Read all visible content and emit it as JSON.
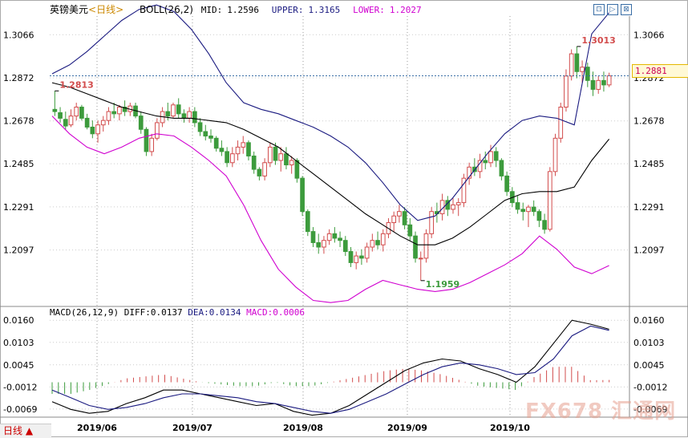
{
  "header": {
    "symbol": "英镑美元",
    "period": "<日线>",
    "boll_label": "BOLL(26,2)",
    "mid_label": "MID:",
    "mid": "1.2596",
    "upper_label": "UPPER:",
    "upper": "1.3165",
    "lower_label": "LOWER:",
    "lower": "1.2027"
  },
  "macd_header": {
    "label": "MACD(26,12,9)",
    "diff_label": "DIFF:",
    "diff": "0.0137",
    "dea_label": "DEA:",
    "dea": "0.0134",
    "macd_label": "MACD:",
    "macd": "0.0006"
  },
  "current_price": "1.2881",
  "period_button": "日线",
  "watermark": "FX678 汇通网",
  "toolbar": {
    "tool1": "⊡",
    "tool2": "▷",
    "tool3": "⊠"
  },
  "colors": {
    "up": "#d24c4c",
    "down": "#3c9b3c",
    "upper": "#1a1a80",
    "mid": "#000000",
    "lower": "#d000d0",
    "diff": "#000000",
    "dea": "#1a1a80",
    "grid": "#999999"
  },
  "chart_data": [
    {
      "type": "candlestick",
      "title": "英镑美元",
      "xlabel": "",
      "ylabel": "",
      "ylim": [
        1.185,
        1.315
      ],
      "yticks": [
        1.3066,
        1.2872,
        1.2678,
        1.2485,
        1.2291,
        1.2097
      ],
      "xticks": [
        "2019/06",
        "2019/07",
        "2019/08",
        "2019/09",
        "2019/10"
      ],
      "annotations": [
        {
          "text": "1.2813",
          "value": 1.2813,
          "kind": "high"
        },
        {
          "text": "1.1959",
          "value": 1.1959,
          "kind": "low"
        },
        {
          "text": "1.3013",
          "value": 1.3013,
          "kind": "high"
        }
      ],
      "current_price": 1.2881,
      "candles": [
        {
          "o": 1.273,
          "h": 1.2813,
          "l": 1.27,
          "c": 1.272
        },
        {
          "o": 1.2715,
          "h": 1.274,
          "l": 1.267,
          "c": 1.269
        },
        {
          "o": 1.2685,
          "h": 1.272,
          "l": 1.264,
          "c": 1.2655
        },
        {
          "o": 1.266,
          "h": 1.273,
          "l": 1.265,
          "c": 1.27
        },
        {
          "o": 1.27,
          "h": 1.276,
          "l": 1.268,
          "c": 1.274
        },
        {
          "o": 1.274,
          "h": 1.275,
          "l": 1.268,
          "c": 1.269
        },
        {
          "o": 1.269,
          "h": 1.271,
          "l": 1.264,
          "c": 1.265
        },
        {
          "o": 1.265,
          "h": 1.268,
          "l": 1.26,
          "c": 1.262
        },
        {
          "o": 1.262,
          "h": 1.268,
          "l": 1.258,
          "c": 1.266
        },
        {
          "o": 1.266,
          "h": 1.27,
          "l": 1.263,
          "c": 1.268
        },
        {
          "o": 1.268,
          "h": 1.274,
          "l": 1.266,
          "c": 1.272
        },
        {
          "o": 1.272,
          "h": 1.276,
          "l": 1.269,
          "c": 1.271
        },
        {
          "o": 1.271,
          "h": 1.275,
          "l": 1.268,
          "c": 1.274
        },
        {
          "o": 1.274,
          "h": 1.277,
          "l": 1.27,
          "c": 1.272
        },
        {
          "o": 1.272,
          "h": 1.276,
          "l": 1.27,
          "c": 1.2745
        },
        {
          "o": 1.2745,
          "h": 1.276,
          "l": 1.269,
          "c": 1.27
        },
        {
          "o": 1.27,
          "h": 1.272,
          "l": 1.262,
          "c": 1.264
        },
        {
          "o": 1.264,
          "h": 1.265,
          "l": 1.252,
          "c": 1.254
        },
        {
          "o": 1.254,
          "h": 1.262,
          "l": 1.252,
          "c": 1.26
        },
        {
          "o": 1.26,
          "h": 1.269,
          "l": 1.259,
          "c": 1.267
        },
        {
          "o": 1.267,
          "h": 1.274,
          "l": 1.265,
          "c": 1.272
        },
        {
          "o": 1.272,
          "h": 1.276,
          "l": 1.268,
          "c": 1.27
        },
        {
          "o": 1.27,
          "h": 1.276,
          "l": 1.269,
          "c": 1.275
        },
        {
          "o": 1.275,
          "h": 1.278,
          "l": 1.269,
          "c": 1.271
        },
        {
          "o": 1.271,
          "h": 1.273,
          "l": 1.267,
          "c": 1.269
        },
        {
          "o": 1.269,
          "h": 1.274,
          "l": 1.267,
          "c": 1.272
        },
        {
          "o": 1.272,
          "h": 1.274,
          "l": 1.265,
          "c": 1.267
        },
        {
          "o": 1.267,
          "h": 1.269,
          "l": 1.261,
          "c": 1.263
        },
        {
          "o": 1.263,
          "h": 1.266,
          "l": 1.259,
          "c": 1.261
        },
        {
          "o": 1.261,
          "h": 1.264,
          "l": 1.258,
          "c": 1.26
        },
        {
          "o": 1.26,
          "h": 1.261,
          "l": 1.254,
          "c": 1.2555
        },
        {
          "o": 1.2555,
          "h": 1.259,
          "l": 1.252,
          "c": 1.254
        },
        {
          "o": 1.254,
          "h": 1.256,
          "l": 1.247,
          "c": 1.249
        },
        {
          "o": 1.249,
          "h": 1.256,
          "l": 1.247,
          "c": 1.253
        },
        {
          "o": 1.253,
          "h": 1.259,
          "l": 1.25,
          "c": 1.256
        },
        {
          "o": 1.256,
          "h": 1.261,
          "l": 1.253,
          "c": 1.258
        },
        {
          "o": 1.258,
          "h": 1.259,
          "l": 1.25,
          "c": 1.252
        },
        {
          "o": 1.252,
          "h": 1.254,
          "l": 1.244,
          "c": 1.246
        },
        {
          "o": 1.246,
          "h": 1.247,
          "l": 1.241,
          "c": 1.243
        },
        {
          "o": 1.243,
          "h": 1.251,
          "l": 1.241,
          "c": 1.249
        },
        {
          "o": 1.249,
          "h": 1.258,
          "l": 1.247,
          "c": 1.256
        },
        {
          "o": 1.256,
          "h": 1.258,
          "l": 1.248,
          "c": 1.25
        },
        {
          "o": 1.25,
          "h": 1.256,
          "l": 1.245,
          "c": 1.253
        },
        {
          "o": 1.253,
          "h": 1.256,
          "l": 1.246,
          "c": 1.248
        },
        {
          "o": 1.248,
          "h": 1.252,
          "l": 1.244,
          "c": 1.25
        },
        {
          "o": 1.25,
          "h": 1.251,
          "l": 1.24,
          "c": 1.242
        },
        {
          "o": 1.242,
          "h": 1.243,
          "l": 1.225,
          "c": 1.227
        },
        {
          "o": 1.227,
          "h": 1.228,
          "l": 1.216,
          "c": 1.218
        },
        {
          "o": 1.218,
          "h": 1.22,
          "l": 1.211,
          "c": 1.213
        },
        {
          "o": 1.213,
          "h": 1.217,
          "l": 1.208,
          "c": 1.211
        },
        {
          "o": 1.211,
          "h": 1.216,
          "l": 1.208,
          "c": 1.214
        },
        {
          "o": 1.214,
          "h": 1.219,
          "l": 1.212,
          "c": 1.217
        },
        {
          "o": 1.217,
          "h": 1.22,
          "l": 1.213,
          "c": 1.215
        },
        {
          "o": 1.215,
          "h": 1.218,
          "l": 1.211,
          "c": 1.214
        },
        {
          "o": 1.214,
          "h": 1.216,
          "l": 1.207,
          "c": 1.209
        },
        {
          "o": 1.209,
          "h": 1.211,
          "l": 1.202,
          "c": 1.204
        },
        {
          "o": 1.204,
          "h": 1.209,
          "l": 1.201,
          "c": 1.207
        },
        {
          "o": 1.207,
          "h": 1.21,
          "l": 1.203,
          "c": 1.206
        },
        {
          "o": 1.206,
          "h": 1.213,
          "l": 1.204,
          "c": 1.211
        },
        {
          "o": 1.211,
          "h": 1.217,
          "l": 1.209,
          "c": 1.214
        },
        {
          "o": 1.214,
          "h": 1.218,
          "l": 1.21,
          "c": 1.212
        },
        {
          "o": 1.212,
          "h": 1.219,
          "l": 1.209,
          "c": 1.217
        },
        {
          "o": 1.217,
          "h": 1.224,
          "l": 1.215,
          "c": 1.222
        },
        {
          "o": 1.222,
          "h": 1.227,
          "l": 1.218,
          "c": 1.225
        },
        {
          "o": 1.225,
          "h": 1.23,
          "l": 1.222,
          "c": 1.227
        },
        {
          "o": 1.227,
          "h": 1.229,
          "l": 1.219,
          "c": 1.221
        },
        {
          "o": 1.221,
          "h": 1.224,
          "l": 1.214,
          "c": 1.216
        },
        {
          "o": 1.216,
          "h": 1.218,
          "l": 1.204,
          "c": 1.206
        },
        {
          "o": 1.206,
          "h": 1.209,
          "l": 1.1959,
          "c": 1.206
        },
        {
          "o": 1.206,
          "h": 1.219,
          "l": 1.204,
          "c": 1.217
        },
        {
          "o": 1.217,
          "h": 1.229,
          "l": 1.215,
          "c": 1.227
        },
        {
          "o": 1.227,
          "h": 1.231,
          "l": 1.222,
          "c": 1.226
        },
        {
          "o": 1.226,
          "h": 1.235,
          "l": 1.223,
          "c": 1.232
        },
        {
          "o": 1.232,
          "h": 1.234,
          "l": 1.225,
          "c": 1.228
        },
        {
          "o": 1.228,
          "h": 1.233,
          "l": 1.226,
          "c": 1.23
        },
        {
          "o": 1.23,
          "h": 1.233,
          "l": 1.225,
          "c": 1.231
        },
        {
          "o": 1.231,
          "h": 1.244,
          "l": 1.229,
          "c": 1.242
        },
        {
          "o": 1.242,
          "h": 1.249,
          "l": 1.239,
          "c": 1.247
        },
        {
          "o": 1.247,
          "h": 1.251,
          "l": 1.243,
          "c": 1.245
        },
        {
          "o": 1.245,
          "h": 1.253,
          "l": 1.242,
          "c": 1.25
        },
        {
          "o": 1.25,
          "h": 1.254,
          "l": 1.246,
          "c": 1.249
        },
        {
          "o": 1.249,
          "h": 1.257,
          "l": 1.247,
          "c": 1.254
        },
        {
          "o": 1.254,
          "h": 1.256,
          "l": 1.247,
          "c": 1.25
        },
        {
          "o": 1.25,
          "h": 1.251,
          "l": 1.241,
          "c": 1.243
        },
        {
          "o": 1.243,
          "h": 1.245,
          "l": 1.234,
          "c": 1.236
        },
        {
          "o": 1.236,
          "h": 1.238,
          "l": 1.229,
          "c": 1.231
        },
        {
          "o": 1.231,
          "h": 1.234,
          "l": 1.226,
          "c": 1.228
        },
        {
          "o": 1.228,
          "h": 1.231,
          "l": 1.223,
          "c": 1.227
        },
        {
          "o": 1.227,
          "h": 1.23,
          "l": 1.22,
          "c": 1.229
        },
        {
          "o": 1.229,
          "h": 1.232,
          "l": 1.225,
          "c": 1.227
        },
        {
          "o": 1.227,
          "h": 1.228,
          "l": 1.22,
          "c": 1.223
        },
        {
          "o": 1.223,
          "h": 1.226,
          "l": 1.217,
          "c": 1.219
        },
        {
          "o": 1.219,
          "h": 1.247,
          "l": 1.218,
          "c": 1.245
        },
        {
          "o": 1.245,
          "h": 1.262,
          "l": 1.243,
          "c": 1.26
        },
        {
          "o": 1.26,
          "h": 1.276,
          "l": 1.258,
          "c": 1.274
        },
        {
          "o": 1.274,
          "h": 1.291,
          "l": 1.272,
          "c": 1.288
        },
        {
          "o": 1.288,
          "h": 1.3,
          "l": 1.286,
          "c": 1.298
        },
        {
          "o": 1.298,
          "h": 1.3013,
          "l": 1.287,
          "c": 1.29
        },
        {
          "o": 1.29,
          "h": 1.295,
          "l": 1.285,
          "c": 1.292
        },
        {
          "o": 1.292,
          "h": 1.294,
          "l": 1.283,
          "c": 1.286
        },
        {
          "o": 1.286,
          "h": 1.29,
          "l": 1.279,
          "c": 1.282
        },
        {
          "o": 1.282,
          "h": 1.288,
          "l": 1.28,
          "c": 1.286
        },
        {
          "o": 1.286,
          "h": 1.29,
          "l": 1.281,
          "c": 1.284
        },
        {
          "o": 1.284,
          "h": 1.2895,
          "l": 1.283,
          "c": 1.2881
        }
      ],
      "series": [
        {
          "name": "UPPER",
          "values": [
            1.289,
            1.293,
            1.299,
            1.306,
            1.313,
            1.318,
            1.32,
            1.317,
            1.309,
            1.298,
            1.285,
            1.276,
            1.273,
            1.271,
            1.268,
            1.265,
            1.261,
            1.256,
            1.249,
            1.24,
            1.23,
            1.223,
            1.225,
            1.233,
            1.243,
            1.253,
            1.262,
            1.268,
            1.27,
            1.269,
            1.266,
            1.307,
            1.3165
          ]
        },
        {
          "name": "MID",
          "values": [
            1.285,
            1.283,
            1.28,
            1.277,
            1.274,
            1.272,
            1.27,
            1.269,
            1.269,
            1.268,
            1.267,
            1.264,
            1.26,
            1.256,
            1.25,
            1.244,
            1.238,
            1.232,
            1.226,
            1.221,
            1.216,
            1.212,
            1.212,
            1.215,
            1.22,
            1.226,
            1.232,
            1.235,
            1.236,
            1.236,
            1.238,
            1.25,
            1.2596
          ]
        },
        {
          "name": "LOWER",
          "values": [
            1.27,
            1.262,
            1.256,
            1.253,
            1.256,
            1.26,
            1.262,
            1.261,
            1.256,
            1.25,
            1.243,
            1.23,
            1.214,
            1.201,
            1.193,
            1.187,
            1.186,
            1.187,
            1.192,
            1.196,
            1.194,
            1.192,
            1.191,
            1.192,
            1.195,
            1.199,
            1.203,
            1.208,
            1.216,
            1.21,
            1.202,
            1.199,
            1.2027
          ]
        }
      ]
    },
    {
      "type": "macd",
      "title": "MACD(26,12,9)",
      "ylim": [
        -0.009,
        0.0175
      ],
      "yticks": [
        0.016,
        0.0103,
        0.0045,
        -0.0012,
        -0.0069
      ],
      "series": [
        {
          "name": "DIFF",
          "values": [
            -0.005,
            -0.007,
            -0.008,
            -0.0075,
            -0.0055,
            -0.004,
            -0.002,
            -0.002,
            -0.003,
            -0.004,
            -0.005,
            -0.006,
            -0.0055,
            -0.0075,
            -0.0085,
            -0.008,
            -0.006,
            -0.003,
            0.0,
            0.003,
            0.005,
            0.006,
            0.0055,
            0.0035,
            0.002,
            0.0,
            0.004,
            0.01,
            0.016,
            0.015,
            0.0137
          ]
        },
        {
          "name": "DEA",
          "values": [
            -0.002,
            -0.004,
            -0.006,
            -0.007,
            -0.0065,
            -0.0055,
            -0.004,
            -0.003,
            -0.003,
            -0.0035,
            -0.004,
            -0.005,
            -0.0055,
            -0.0065,
            -0.0075,
            -0.008,
            -0.007,
            -0.005,
            -0.003,
            -0.0005,
            0.002,
            0.004,
            0.005,
            0.0045,
            0.0035,
            0.002,
            0.0025,
            0.006,
            0.012,
            0.0145,
            0.0134
          ]
        },
        {
          "name": "MACD",
          "values": [
            -0.003,
            -0.003,
            -0.002,
            -0.0005,
            0.001,
            0.0015,
            0.002,
            0.001,
            0.0,
            -0.0005,
            -0.001,
            -0.001,
            0.0,
            -0.001,
            -0.001,
            0.0,
            0.001,
            0.002,
            0.003,
            0.0035,
            0.003,
            0.002,
            0.0005,
            -0.001,
            -0.0015,
            -0.002,
            0.0015,
            0.004,
            0.004,
            0.0005,
            0.0006
          ]
        }
      ]
    }
  ]
}
